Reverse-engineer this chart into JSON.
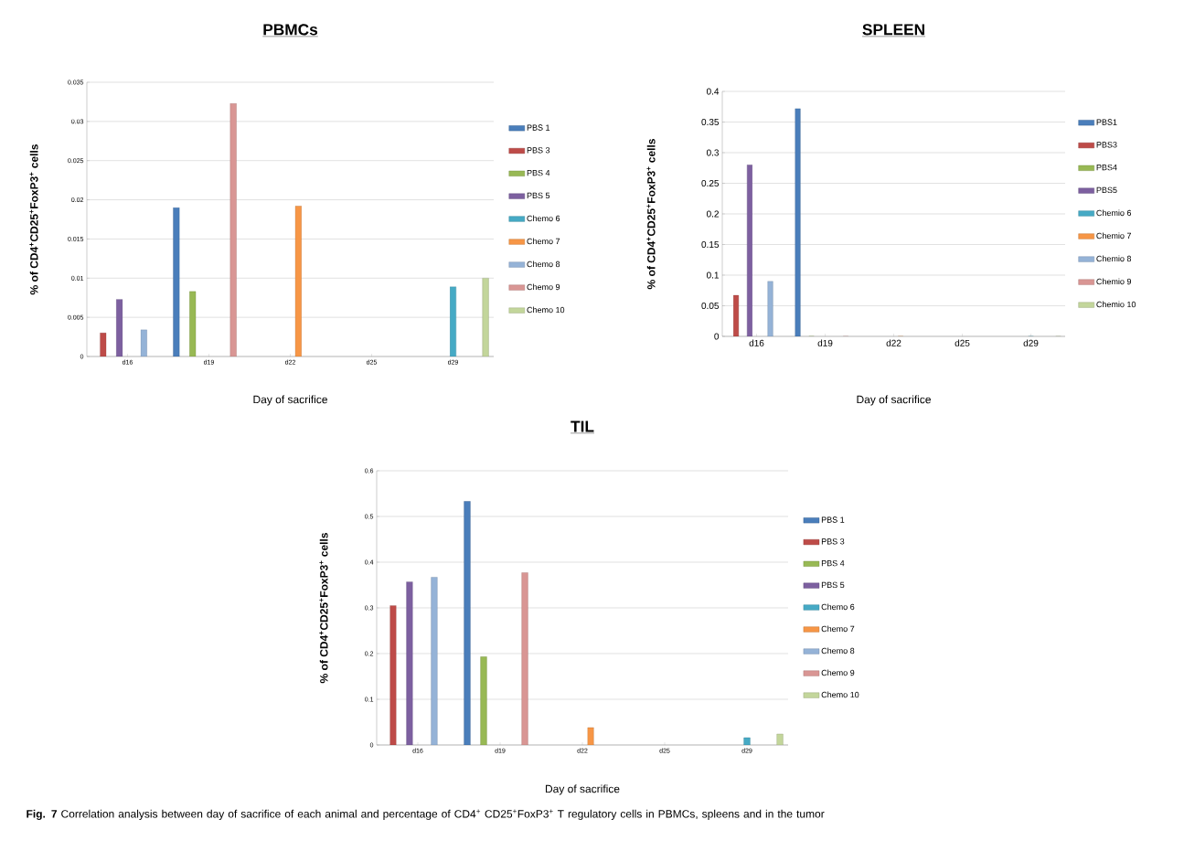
{
  "chart_data": [
    {
      "type": "bar",
      "title": "PBMCs",
      "xlabel": "Day of sacrifice",
      "ylabel": "% of CD4$^{+}$CD25$^{+}$FoxP3$^{+}$ cells",
      "categories": [
        "d16",
        "d19",
        "d22",
        "d25",
        "d29"
      ],
      "ylim": [
        0,
        0.035
      ],
      "yticks": [
        0,
        0.005,
        0.01,
        0.015,
        0.02,
        0.025,
        0.03,
        0.035
      ],
      "grid": "y",
      "legend": "right",
      "series": [
        {
          "name": "PBS 1",
          "color": "#4a7ebb",
          "values": [
            null,
            0.019,
            null,
            null,
            null
          ]
        },
        {
          "name": "PBS 3",
          "color": "#be4b48",
          "values": [
            0.003,
            null,
            null,
            null,
            null
          ]
        },
        {
          "name": "PBS 4",
          "color": "#98b954",
          "values": [
            null,
            0.0083,
            null,
            null,
            null
          ]
        },
        {
          "name": "PBS 5",
          "color": "#7d60a0",
          "values": [
            0.0073,
            null,
            null,
            null,
            null
          ]
        },
        {
          "name": "Chemo 6",
          "color": "#46aac5",
          "values": [
            null,
            null,
            null,
            null,
            0.0089
          ]
        },
        {
          "name": "Chemo 7",
          "color": "#f79646",
          "values": [
            null,
            null,
            0.0192,
            null,
            null
          ]
        },
        {
          "name": "Chemo 8",
          "color": "#95b3d7",
          "values": [
            0.0034,
            null,
            null,
            null,
            null
          ]
        },
        {
          "name": "Chemo 9",
          "color": "#d99694",
          "values": [
            null,
            0.0323,
            null,
            null,
            null
          ]
        },
        {
          "name": "Chemo 10",
          "color": "#c3d69b",
          "values": [
            null,
            null,
            null,
            null,
            0.01
          ]
        }
      ]
    },
    {
      "type": "bar",
      "title": "SPLEEN",
      "xlabel": "Day of sacrifice",
      "ylabel": "% of CD4$^{+}$CD25$^{+}$FoxP3$^{+}$ cells",
      "categories": [
        "d16",
        "d19",
        "d22",
        "d25",
        "d29"
      ],
      "ylim": [
        0,
        0.4
      ],
      "yticks": [
        0,
        0.05,
        0.1,
        0.15,
        0.2,
        0.25,
        0.3,
        0.35,
        0.4
      ],
      "grid": "y",
      "legend": "right",
      "series": [
        {
          "name": "PBS1",
          "color": "#4a7ebb",
          "values": [
            null,
            0.372,
            null,
            null,
            null
          ]
        },
        {
          "name": "PBS3",
          "color": "#be4b48",
          "values": [
            0.067,
            null,
            null,
            null,
            null
          ]
        },
        {
          "name": "PBS4",
          "color": "#98b954",
          "values": [
            null,
            0,
            null,
            null,
            null
          ]
        },
        {
          "name": "PBS5",
          "color": "#7d60a0",
          "values": [
            0.28,
            null,
            null,
            null,
            null
          ]
        },
        {
          "name": "Chemio 6",
          "color": "#46aac5",
          "values": [
            null,
            null,
            null,
            null,
            0
          ]
        },
        {
          "name": "Chemio 7",
          "color": "#f79646",
          "values": [
            null,
            null,
            0,
            null,
            null
          ]
        },
        {
          "name": "Chemio 8",
          "color": "#95b3d7",
          "values": [
            0.09,
            null,
            null,
            null,
            null
          ]
        },
        {
          "name": "Chemio 9",
          "color": "#d99694",
          "values": [
            null,
            0,
            null,
            null,
            null
          ]
        },
        {
          "name": "Chemio 10",
          "color": "#c3d69b",
          "values": [
            null,
            null,
            null,
            null,
            0
          ]
        }
      ]
    },
    {
      "type": "bar",
      "title": "TIL",
      "xlabel": "Day of sacrifice",
      "ylabel": "% of CD4$^{+}$CD25$^{+}$FoxP3$^{+}$ cells",
      "categories": [
        "d16",
        "d19",
        "d22",
        "d25",
        "d29"
      ],
      "ylim": [
        0,
        0.6
      ],
      "yticks": [
        0,
        0.1,
        0.2,
        0.3,
        0.4,
        0.5,
        0.6
      ],
      "grid": "y",
      "legend": "right",
      "annotations": [
        "**Fig. 7** Correlation analysis between day of sacrifice of each animal and percentage of CD4$^{+}$ CD25$^{+}$FoxP3$^{+}$ T regulatory cells in PBMCs, spleens and in the tumor"
      ],
      "series": [
        {
          "name": "PBS 1",
          "color": "#4a7ebb",
          "values": [
            null,
            0.533,
            null,
            null,
            null
          ]
        },
        {
          "name": "PBS 3",
          "color": "#be4b48",
          "values": [
            0.305,
            null,
            null,
            null,
            null
          ]
        },
        {
          "name": "PBS 4",
          "color": "#98b954",
          "values": [
            null,
            0.193,
            null,
            null,
            null
          ]
        },
        {
          "name": "PBS 5",
          "color": "#7d60a0",
          "values": [
            0.357,
            null,
            null,
            null,
            null
          ]
        },
        {
          "name": "Chemo 6",
          "color": "#46aac5",
          "values": [
            null,
            null,
            null,
            null,
            0.016
          ]
        },
        {
          "name": "Chemo 7",
          "color": "#f79646",
          "values": [
            null,
            null,
            0.038,
            null,
            null
          ]
        },
        {
          "name": "Chemo 8",
          "color": "#95b3d7",
          "values": [
            0.367,
            null,
            null,
            null,
            null
          ]
        },
        {
          "name": "Chemo 9",
          "color": "#d99694",
          "values": [
            null,
            0.377,
            null,
            null,
            null
          ]
        },
        {
          "name": "Chemo 10",
          "color": "#c3d69b",
          "values": [
            null,
            null,
            null,
            null,
            0.024
          ]
        }
      ]
    }
  ]
}
